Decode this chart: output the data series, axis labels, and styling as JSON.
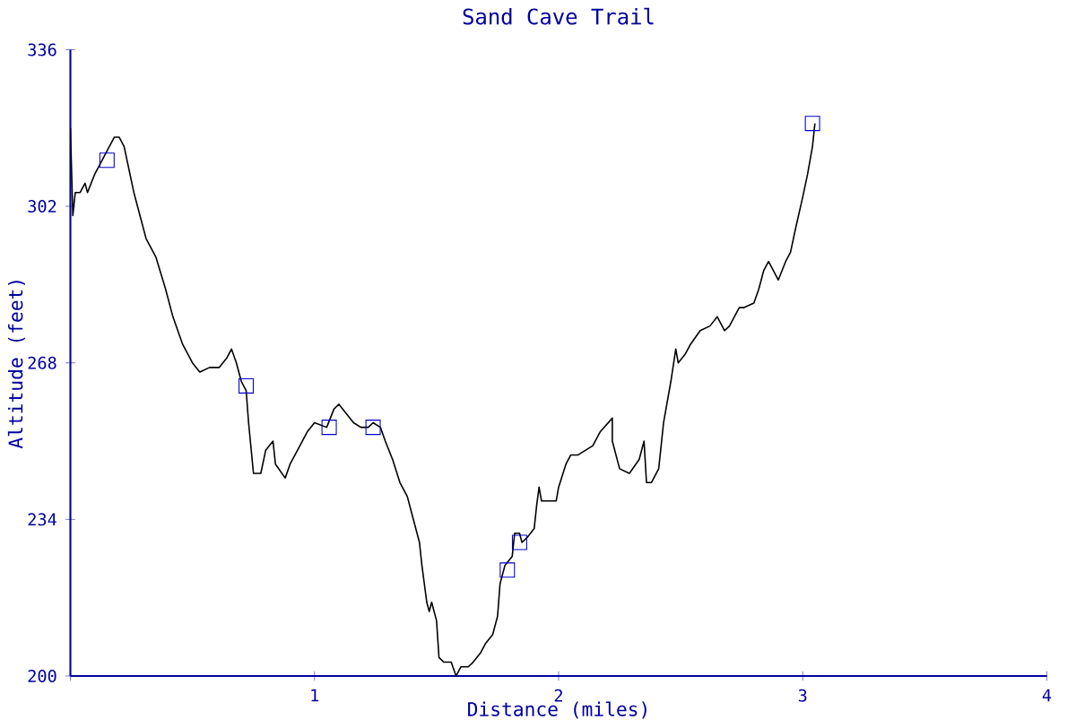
{
  "chart_data": {
    "type": "line",
    "title": "Sand Cave Trail",
    "xlabel": "Distance (miles)",
    "ylabel": "Altitude (feet)",
    "xlim": [
      0,
      4
    ],
    "ylim": [
      200,
      336
    ],
    "xticks": [
      {
        "value": 0,
        "label": null
      },
      1,
      2,
      3,
      4
    ],
    "yticks": [
      200,
      234,
      268,
      302,
      336
    ],
    "grid": false,
    "series": [
      {
        "color": "#000000",
        "marker": "none",
        "x": [
          0.0,
          0.01,
          0.02,
          0.04,
          0.06,
          0.07,
          0.1,
          0.12,
          0.15,
          0.17,
          0.18,
          0.2,
          0.22,
          0.24,
          0.26,
          0.29,
          0.31,
          0.35,
          0.39,
          0.42,
          0.46,
          0.5,
          0.53,
          0.57,
          0.61,
          0.64,
          0.66,
          0.68,
          0.7,
          0.72,
          0.73,
          0.75,
          0.78,
          0.8,
          0.83,
          0.84,
          0.88,
          0.9,
          0.93,
          0.97,
          1.0,
          1.05,
          1.08,
          1.1,
          1.13,
          1.16,
          1.19,
          1.22,
          1.24,
          1.27,
          1.29,
          1.32,
          1.35,
          1.38,
          1.4,
          1.43,
          1.44,
          1.46,
          1.47,
          1.48,
          1.5,
          1.51,
          1.53,
          1.56,
          1.58,
          1.6,
          1.63,
          1.65,
          1.68,
          1.7,
          1.73,
          1.75,
          1.76,
          1.78,
          1.81,
          1.82,
          1.84,
          1.85,
          1.87,
          1.9,
          1.91,
          1.92,
          1.93,
          1.99,
          2.0,
          2.03,
          2.05,
          2.08,
          2.14,
          2.17,
          2.22,
          2.22,
          2.25,
          2.29,
          2.33,
          2.35,
          2.36,
          2.38,
          2.41,
          2.43,
          2.46,
          2.48,
          2.49,
          2.52,
          2.54,
          2.58,
          2.62,
          2.65,
          2.68,
          2.7,
          2.74,
          2.76,
          2.8,
          2.82,
          2.84,
          2.86,
          2.88,
          2.9,
          2.93,
          2.95,
          2.97,
          3.0,
          3.02,
          3.04,
          3.05
        ],
        "values": [
          319,
          300,
          305,
          305,
          307,
          305,
          309,
          311,
          314,
          316,
          317,
          317,
          315,
          310,
          305,
          299,
          295,
          291,
          284,
          278,
          272,
          268,
          266,
          267,
          267,
          269,
          271,
          268,
          264,
          262,
          255,
          244,
          244,
          249,
          251,
          246,
          243,
          246,
          249,
          253,
          255,
          254,
          258,
          259,
          257,
          255,
          254,
          254,
          255,
          254,
          251,
          247,
          242,
          239,
          235,
          229,
          224,
          216,
          214,
          216,
          212,
          204,
          203,
          203,
          200,
          202,
          202,
          203,
          205,
          207,
          209,
          213,
          220,
          224,
          226,
          231,
          231,
          229,
          230,
          232,
          237,
          241,
          238,
          238,
          241,
          246,
          248,
          248,
          250,
          253,
          256,
          251,
          245,
          244,
          247,
          251,
          242,
          242,
          245,
          255,
          264,
          271,
          268,
          270,
          272,
          275,
          276,
          278,
          275,
          276,
          280,
          280,
          281,
          284,
          288,
          290,
          288,
          286,
          290,
          292,
          297,
          304,
          309,
          315,
          320
        ]
      },
      {
        "type": "scatter",
        "color": "#0000cc",
        "marker": "square",
        "x": [
          0.15,
          0.72,
          1.06,
          1.24,
          1.79,
          1.84,
          3.04
        ],
        "values": [
          312,
          263,
          254,
          254,
          223,
          229,
          320
        ]
      }
    ]
  }
}
